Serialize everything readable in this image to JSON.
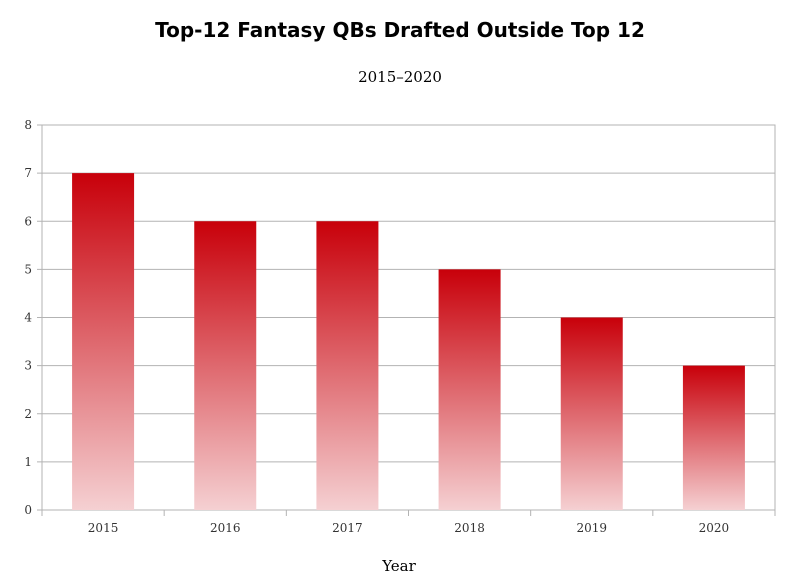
{
  "chart_data": {
    "type": "bar",
    "title": "Top-12 Fantasy QBs Drafted Outside Top 12",
    "subtitle": "2015–2020",
    "xlabel": "Year",
    "ylabel": "",
    "categories": [
      "2015",
      "2016",
      "2017",
      "2018",
      "2019",
      "2020"
    ],
    "values": [
      7,
      6,
      6,
      5,
      4,
      3
    ],
    "ylim": [
      0,
      8
    ],
    "yticks": [
      0,
      1,
      2,
      3,
      4,
      5,
      6,
      7,
      8
    ],
    "grid": true,
    "legend": "none",
    "bar_color_top": "#c8000a",
    "bar_color_bottom": "#f5d0d2"
  }
}
